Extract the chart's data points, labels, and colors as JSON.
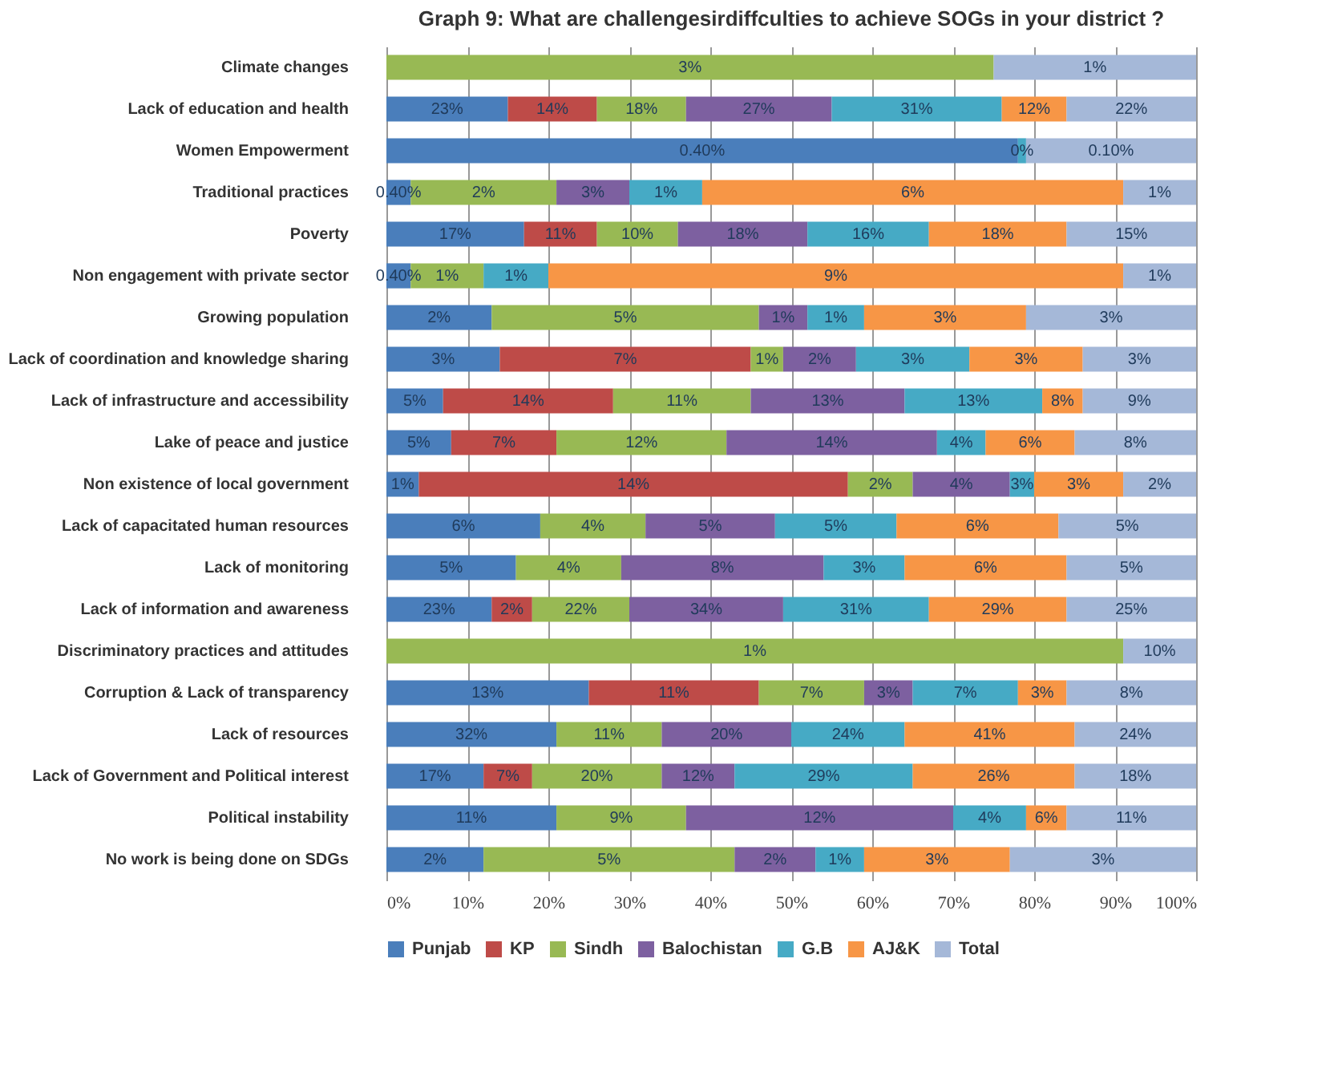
{
  "chart_data": {
    "type": "bar",
    "orientation": "horizontal",
    "stacked": true,
    "title": "Graph 9: What are challengesirdiffculties to achieve SOGs in your district ?",
    "categories": [
      "Climate changes",
      "Lack of education and health",
      "Women Empowerment",
      "Traditional practices",
      "Poverty",
      "Non engagement with private sector",
      "Growing population",
      "Lack of coordination and knowledge sharing",
      "Lack of infrastructure and accessibility",
      "Lake of peace and justice",
      "Non existence of local government",
      "Lack of capacitated human resources",
      "Lack of monitoring",
      "Lack of information and awareness",
      "Discriminatory practices and attitudes",
      "Corruption & Lack of transparency",
      "Lack of resources",
      "Lack of Government and Political interest",
      "Political instability",
      "No work is being done on SDGs"
    ],
    "xlim": [
      0,
      100
    ],
    "xticks": [
      {
        "value": 0,
        "label": "0%"
      },
      {
        "value": 10,
        "label": "10%"
      },
      {
        "value": 20,
        "label": "20%"
      },
      {
        "value": 30,
        "label": "30%"
      },
      {
        "value": 40,
        "label": "40%"
      },
      {
        "value": 50,
        "label": "50%"
      },
      {
        "value": 60,
        "label": "60%"
      },
      {
        "value": 70,
        "label": "70%"
      },
      {
        "value": 80,
        "label": "80%"
      },
      {
        "value": 90,
        "label": "90%"
      },
      {
        "value": 100,
        "label": "100%"
      }
    ],
    "grid": "x",
    "legend": "bottom",
    "series": [
      {
        "name": "Punjab",
        "color": "#4a7ebb",
        "values": [
          null,
          15,
          78,
          3,
          17,
          3,
          13,
          14,
          7,
          8,
          4,
          19,
          16,
          13,
          null,
          25,
          21,
          12,
          21,
          12
        ]
      },
      {
        "name": "KP",
        "color": "#be4b48",
        "values": [
          null,
          11,
          null,
          null,
          9,
          null,
          null,
          31,
          21,
          13,
          53,
          null,
          null,
          5,
          null,
          21,
          null,
          6,
          null,
          null
        ]
      },
      {
        "name": "Sindh",
        "color": "#98b954",
        "values": [
          75,
          11,
          null,
          18,
          10,
          9,
          33,
          4,
          17,
          21,
          8,
          13,
          13,
          12,
          91,
          13,
          13,
          16,
          16,
          31
        ]
      },
      {
        "name": "Balochistan",
        "color": "#7d60a0",
        "values": [
          null,
          18,
          null,
          9,
          16,
          null,
          6,
          9,
          19,
          26,
          12,
          16,
          25,
          19,
          null,
          6,
          16,
          9,
          33,
          10
        ]
      },
      {
        "name": "G.B",
        "color": "#46aac5",
        "values": [
          null,
          21,
          1,
          9,
          15,
          8,
          7,
          14,
          17,
          6,
          3,
          15,
          10,
          18,
          null,
          13,
          14,
          22,
          9,
          6
        ]
      },
      {
        "name": "AJ&K",
        "color": "#f79646",
        "values": [
          null,
          8,
          null,
          52,
          17,
          71,
          20,
          14,
          5,
          11,
          11,
          20,
          20,
          17,
          null,
          6,
          21,
          20,
          5,
          18
        ]
      },
      {
        "name": "Total",
        "color": "#a5b8d8",
        "values": [
          25,
          16,
          21,
          9,
          16,
          9,
          21,
          14,
          14,
          15,
          9,
          17,
          16,
          16,
          9,
          16,
          15,
          15,
          16,
          23
        ]
      }
    ],
    "annotations": [
      {
        "text": "3%",
        "x": 37.5,
        "y": "Climate changes"
      },
      {
        "text": "1%",
        "x": 87.5,
        "y": "Climate changes"
      },
      {
        "text": "23%",
        "x": 7.5,
        "y": "Lack of education and health"
      },
      {
        "text": "14%",
        "x": 20.5,
        "y": "Lack of education and health"
      },
      {
        "text": "18%",
        "x": 31.5,
        "y": "Lack of education and health"
      },
      {
        "text": "27%",
        "x": 46,
        "y": "Lack of education and health"
      },
      {
        "text": "31%",
        "x": 65.5,
        "y": "Lack of education and health"
      },
      {
        "text": "12%",
        "x": 80,
        "y": "Lack of education and health"
      },
      {
        "text": "22%",
        "x": 92,
        "y": "Lack of education and health"
      },
      {
        "text": "0.40%",
        "x": 39,
        "y": "Women Empowerment"
      },
      {
        "text": "0%",
        "x": 78.5,
        "y": "Women Empowerment"
      },
      {
        "text": "0.10%",
        "x": 89.5,
        "y": "Women Empowerment"
      },
      {
        "text": "0.40%",
        "x": 1.5,
        "y": "Traditional practices"
      },
      {
        "text": "2%",
        "x": 12,
        "y": "Traditional practices"
      },
      {
        "text": "3%",
        "x": 25.5,
        "y": "Traditional practices"
      },
      {
        "text": "1%",
        "x": 34.5,
        "y": "Traditional practices"
      },
      {
        "text": "6%",
        "x": 65,
        "y": "Traditional practices"
      },
      {
        "text": "1%",
        "x": 95.5,
        "y": "Traditional practices"
      },
      {
        "text": "17%",
        "x": 8.5,
        "y": "Poverty"
      },
      {
        "text": "11%",
        "x": 21.5,
        "y": "Poverty"
      },
      {
        "text": "10%",
        "x": 31,
        "y": "Poverty"
      },
      {
        "text": "18%",
        "x": 44,
        "y": "Poverty"
      },
      {
        "text": "16%",
        "x": 59.5,
        "y": "Poverty"
      },
      {
        "text": "18%",
        "x": 75.5,
        "y": "Poverty"
      },
      {
        "text": "15%",
        "x": 92,
        "y": "Poverty"
      },
      {
        "text": "0.40%",
        "x": 1.5,
        "y": "Non engagement with private sector"
      },
      {
        "text": "1%",
        "x": 7.5,
        "y": "Non engagement with private sector"
      },
      {
        "text": "1%",
        "x": 16,
        "y": "Non engagement with private sector"
      },
      {
        "text": "9%",
        "x": 55.5,
        "y": "Non engagement with private sector"
      },
      {
        "text": "1%",
        "x": 95.5,
        "y": "Non engagement with private sector"
      },
      {
        "text": "2%",
        "x": 6.5,
        "y": "Growing population"
      },
      {
        "text": "5%",
        "x": 29.5,
        "y": "Growing population"
      },
      {
        "text": "1%",
        "x": 49,
        "y": "Growing population"
      },
      {
        "text": "1%",
        "x": 55.5,
        "y": "Growing population"
      },
      {
        "text": "3%",
        "x": 69,
        "y": "Growing population"
      },
      {
        "text": "3%",
        "x": 89.5,
        "y": "Growing population"
      },
      {
        "text": "3%",
        "x": 7,
        "y": "Lack of coordination and knowledge sharing"
      },
      {
        "text": "7%",
        "x": 29.5,
        "y": "Lack of coordination and knowledge sharing"
      },
      {
        "text": "1%",
        "x": 47,
        "y": "Lack of coordination and knowledge sharing"
      },
      {
        "text": "2%",
        "x": 53.5,
        "y": "Lack of coordination and knowledge sharing"
      },
      {
        "text": "3%",
        "x": 65,
        "y": "Lack of coordination and knowledge sharing"
      },
      {
        "text": "3%",
        "x": 79,
        "y": "Lack of coordination and knowledge sharing"
      },
      {
        "text": "3%",
        "x": 93,
        "y": "Lack of coordination and knowledge sharing"
      },
      {
        "text": "5%",
        "x": 3.5,
        "y": "Lack of infrastructure and accessibility"
      },
      {
        "text": "14%",
        "x": 17.5,
        "y": "Lack of infrastructure and accessibility"
      },
      {
        "text": "11%",
        "x": 36.5,
        "y": "Lack of infrastructure and accessibility"
      },
      {
        "text": "13%",
        "x": 54.5,
        "y": "Lack of infrastructure and accessibility"
      },
      {
        "text": "13%",
        "x": 72.5,
        "y": "Lack of infrastructure and accessibility"
      },
      {
        "text": "8%",
        "x": 83.5,
        "y": "Lack of infrastructure and accessibility"
      },
      {
        "text": "9%",
        "x": 93,
        "y": "Lack of infrastructure and accessibility"
      },
      {
        "text": "5%",
        "x": 4,
        "y": "Lake of peace and justice"
      },
      {
        "text": "7%",
        "x": 14.5,
        "y": "Lake of peace and justice"
      },
      {
        "text": "12%",
        "x": 31.5,
        "y": "Lake of peace and justice"
      },
      {
        "text": "14%",
        "x": 55,
        "y": "Lake of peace and justice"
      },
      {
        "text": "4%",
        "x": 71,
        "y": "Lake of peace and justice"
      },
      {
        "text": "6%",
        "x": 79.5,
        "y": "Lake of peace and justice"
      },
      {
        "text": "8%",
        "x": 92.5,
        "y": "Lake of peace and justice"
      },
      {
        "text": "1%",
        "x": 2,
        "y": "Non existence of local government"
      },
      {
        "text": "14%",
        "x": 30.5,
        "y": "Non existence of local government"
      },
      {
        "text": "2%",
        "x": 61,
        "y": "Non existence of local government"
      },
      {
        "text": "4%",
        "x": 71,
        "y": "Non existence of local government"
      },
      {
        "text": "3%",
        "x": 78.5,
        "y": "Non existence of local government"
      },
      {
        "text": "3%",
        "x": 85.5,
        "y": "Non existence of local government"
      },
      {
        "text": "2%",
        "x": 95.5,
        "y": "Non existence of local government"
      },
      {
        "text": "6%",
        "x": 9.5,
        "y": "Lack of capacitated human resources"
      },
      {
        "text": "4%",
        "x": 25.5,
        "y": "Lack of capacitated human resources"
      },
      {
        "text": "5%",
        "x": 40,
        "y": "Lack of capacitated human resources"
      },
      {
        "text": "5%",
        "x": 55.5,
        "y": "Lack of capacitated human resources"
      },
      {
        "text": "6%",
        "x": 73,
        "y": "Lack of capacitated human resources"
      },
      {
        "text": "5%",
        "x": 91.5,
        "y": "Lack of capacitated human resources"
      },
      {
        "text": "5%",
        "x": 8,
        "y": "Lack of monitoring"
      },
      {
        "text": "4%",
        "x": 22.5,
        "y": "Lack of monitoring"
      },
      {
        "text": "8%",
        "x": 41.5,
        "y": "Lack of monitoring"
      },
      {
        "text": "3%",
        "x": 59,
        "y": "Lack of monitoring"
      },
      {
        "text": "6%",
        "x": 74,
        "y": "Lack of monitoring"
      },
      {
        "text": "5%",
        "x": 92,
        "y": "Lack of monitoring"
      },
      {
        "text": "23%",
        "x": 6.5,
        "y": "Lack of information and awareness"
      },
      {
        "text": "2%",
        "x": 15.5,
        "y": "Lack of information and awareness"
      },
      {
        "text": "22%",
        "x": 24,
        "y": "Lack of information and awareness"
      },
      {
        "text": "34%",
        "x": 39.5,
        "y": "Lack of information and awareness"
      },
      {
        "text": "31%",
        "x": 58,
        "y": "Lack of information and awareness"
      },
      {
        "text": "29%",
        "x": 75.5,
        "y": "Lack of information and awareness"
      },
      {
        "text": "25%",
        "x": 92,
        "y": "Lack of information and awareness"
      },
      {
        "text": "1%",
        "x": 45.5,
        "y": "Discriminatory practices and attitudes"
      },
      {
        "text": "10%",
        "x": 95.5,
        "y": "Discriminatory practices and attitudes"
      },
      {
        "text": "13%",
        "x": 12.5,
        "y": "Corruption & Lack of transparency"
      },
      {
        "text": "11%",
        "x": 35.5,
        "y": "Corruption & Lack of transparency"
      },
      {
        "text": "7%",
        "x": 52.5,
        "y": "Corruption & Lack of transparency"
      },
      {
        "text": "3%",
        "x": 62,
        "y": "Corruption & Lack of transparency"
      },
      {
        "text": "7%",
        "x": 71.5,
        "y": "Corruption & Lack of transparency"
      },
      {
        "text": "3%",
        "x": 81,
        "y": "Corruption & Lack of transparency"
      },
      {
        "text": "8%",
        "x": 92,
        "y": "Corruption & Lack of transparency"
      },
      {
        "text": "32%",
        "x": 10.5,
        "y": "Lack of resources"
      },
      {
        "text": "11%",
        "x": 27.5,
        "y": "Lack of resources"
      },
      {
        "text": "20%",
        "x": 42,
        "y": "Lack of resources"
      },
      {
        "text": "24%",
        "x": 57,
        "y": "Lack of resources"
      },
      {
        "text": "41%",
        "x": 74.5,
        "y": "Lack of resources"
      },
      {
        "text": "24%",
        "x": 92.5,
        "y": "Lack of resources"
      },
      {
        "text": "17%",
        "x": 6,
        "y": "Lack of Government and Political interest"
      },
      {
        "text": "7%",
        "x": 15,
        "y": "Lack of Government and Political interest"
      },
      {
        "text": "20%",
        "x": 26,
        "y": "Lack of Government and Political interest"
      },
      {
        "text": "12%",
        "x": 38.5,
        "y": "Lack of Government and Political interest"
      },
      {
        "text": "29%",
        "x": 54,
        "y": "Lack of Government and Political interest"
      },
      {
        "text": "26%",
        "x": 75,
        "y": "Lack of Government and Political interest"
      },
      {
        "text": "18%",
        "x": 92.5,
        "y": "Lack of Government and Political interest"
      },
      {
        "text": "11%",
        "x": 10.5,
        "y": "Political instability"
      },
      {
        "text": "9%",
        "x": 29,
        "y": "Political instability"
      },
      {
        "text": "12%",
        "x": 53.5,
        "y": "Political instability"
      },
      {
        "text": "4%",
        "x": 74.5,
        "y": "Political instability"
      },
      {
        "text": "6%",
        "x": 81.5,
        "y": "Political instability"
      },
      {
        "text": "11%",
        "x": 92,
        "y": "Political instability"
      },
      {
        "text": "2%",
        "x": 6,
        "y": "No work is being done on SDGs"
      },
      {
        "text": "5%",
        "x": 27.5,
        "y": "No work is being done on SDGs"
      },
      {
        "text": "2%",
        "x": 48,
        "y": "No work is being done on SDGs"
      },
      {
        "text": "1%",
        "x": 56,
        "y": "No work is being done on SDGs"
      },
      {
        "text": "3%",
        "x": 68,
        "y": "No work is being done on SDGs"
      },
      {
        "text": "3%",
        "x": 88.5,
        "y": "No work is being done on SDGs"
      }
    ]
  }
}
